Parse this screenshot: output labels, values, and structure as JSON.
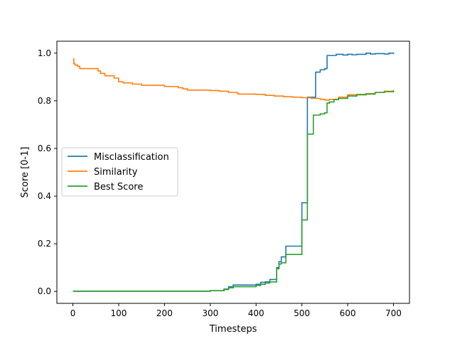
{
  "chart_data": {
    "type": "line",
    "title": "",
    "xlabel": "Timesteps",
    "ylabel": "Score [0-1]",
    "xlim": [
      -35,
      735
    ],
    "ylim": [
      -0.05,
      1.05
    ],
    "xticks": [
      0,
      100,
      200,
      300,
      400,
      500,
      600,
      700
    ],
    "yticks": [
      0.0,
      0.2,
      0.4,
      0.6,
      0.8,
      1.0
    ],
    "xtick_labels": [
      "0",
      "100",
      "200",
      "300",
      "400",
      "500",
      "600",
      "700"
    ],
    "ytick_labels": [
      "0.0",
      "0.2",
      "0.4",
      "0.6",
      "0.8",
      "1.0"
    ],
    "grid": false,
    "legend_position": "center-left",
    "series": [
      {
        "name": "Misclassification",
        "color": "#1f77b4",
        "x": [
          0,
          300,
          330,
          340,
          350,
          400,
          410,
          420,
          430,
          440,
          445,
          450,
          455,
          460,
          465,
          495,
          500,
          510,
          512,
          525,
          530,
          540,
          550,
          555,
          560,
          570,
          575,
          590,
          600,
          610,
          620,
          630,
          640,
          650,
          660,
          670,
          680,
          690,
          700
        ],
        "y": [
          0.001,
          0.003,
          0.01,
          0.02,
          0.027,
          0.03,
          0.038,
          0.04,
          0.05,
          0.05,
          0.1,
          0.125,
          0.145,
          0.145,
          0.19,
          0.19,
          0.372,
          0.372,
          0.815,
          0.815,
          0.92,
          0.93,
          0.935,
          0.99,
          0.99,
          0.99,
          0.995,
          0.992,
          0.995,
          0.993,
          0.995,
          0.995,
          1.0,
          0.996,
          0.998,
          0.998,
          0.996,
          1.0,
          0.996
        ]
      },
      {
        "name": "Similarity",
        "color": "#ff7f0e",
        "x": [
          0,
          2,
          5,
          10,
          15,
          50,
          55,
          60,
          70,
          90,
          100,
          110,
          130,
          150,
          180,
          200,
          230,
          240,
          250,
          300,
          320,
          340,
          360,
          400,
          420,
          440,
          460,
          480,
          500,
          520,
          540,
          550,
          560,
          580,
          600,
          620,
          640,
          660,
          680,
          700
        ],
        "y": [
          0.975,
          0.955,
          0.95,
          0.945,
          0.935,
          0.935,
          0.925,
          0.915,
          0.905,
          0.895,
          0.88,
          0.875,
          0.87,
          0.865,
          0.865,
          0.86,
          0.855,
          0.85,
          0.845,
          0.843,
          0.84,
          0.835,
          0.828,
          0.827,
          0.823,
          0.82,
          0.817,
          0.815,
          0.813,
          0.81,
          0.806,
          0.803,
          0.806,
          0.815,
          0.825,
          0.827,
          0.83,
          0.835,
          0.84,
          0.845
        ]
      },
      {
        "name": "Best Score",
        "color": "#2ca02c",
        "x": [
          0,
          300,
          330,
          340,
          350,
          400,
          410,
          420,
          430,
          440,
          445,
          450,
          455,
          460,
          465,
          495,
          500,
          510,
          512,
          525,
          540,
          550,
          555,
          560,
          570,
          580,
          600,
          620,
          640,
          660,
          680,
          700
        ],
        "y": [
          0.001,
          0.003,
          0.008,
          0.015,
          0.02,
          0.025,
          0.03,
          0.035,
          0.04,
          0.04,
          0.095,
          0.115,
          0.12,
          0.12,
          0.155,
          0.155,
          0.3,
          0.3,
          0.66,
          0.74,
          0.745,
          0.75,
          0.79,
          0.795,
          0.805,
          0.81,
          0.82,
          0.825,
          0.828,
          0.835,
          0.838,
          0.843
        ]
      }
    ]
  }
}
